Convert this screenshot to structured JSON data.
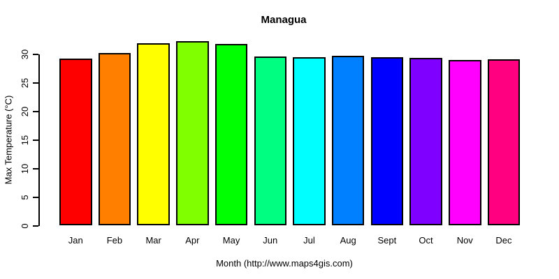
{
  "chart_data": {
    "type": "bar",
    "title": "Managua",
    "xlabel": "Month (http://www.maps4gis.com)",
    "ylabel": "Max Temperature (°C)",
    "categories": [
      "Jan",
      "Feb",
      "Mar",
      "Apr",
      "May",
      "Jun",
      "Jul",
      "Aug",
      "Sept",
      "Oct",
      "Nov",
      "Dec"
    ],
    "values": [
      29.3,
      30.3,
      31.9,
      32.3,
      31.8,
      29.6,
      29.5,
      29.8,
      29.5,
      29.4,
      29.0,
      29.2
    ],
    "bar_colors": [
      "#FF0000",
      "#FF8000",
      "#FFFF00",
      "#80FF00",
      "#00FF00",
      "#00FF80",
      "#00FFFF",
      "#0080FF",
      "#0000FF",
      "#8000FF",
      "#FF00FF",
      "#FF0080"
    ],
    "bar_border_color": "#000000",
    "yticks": [
      0,
      5,
      10,
      15,
      20,
      25,
      30
    ],
    "ylim": [
      0,
      33
    ],
    "axis_color": "#000000",
    "text_color": "#000000",
    "background_color": "#FFFFFF",
    "grid": false,
    "legend": false
  }
}
